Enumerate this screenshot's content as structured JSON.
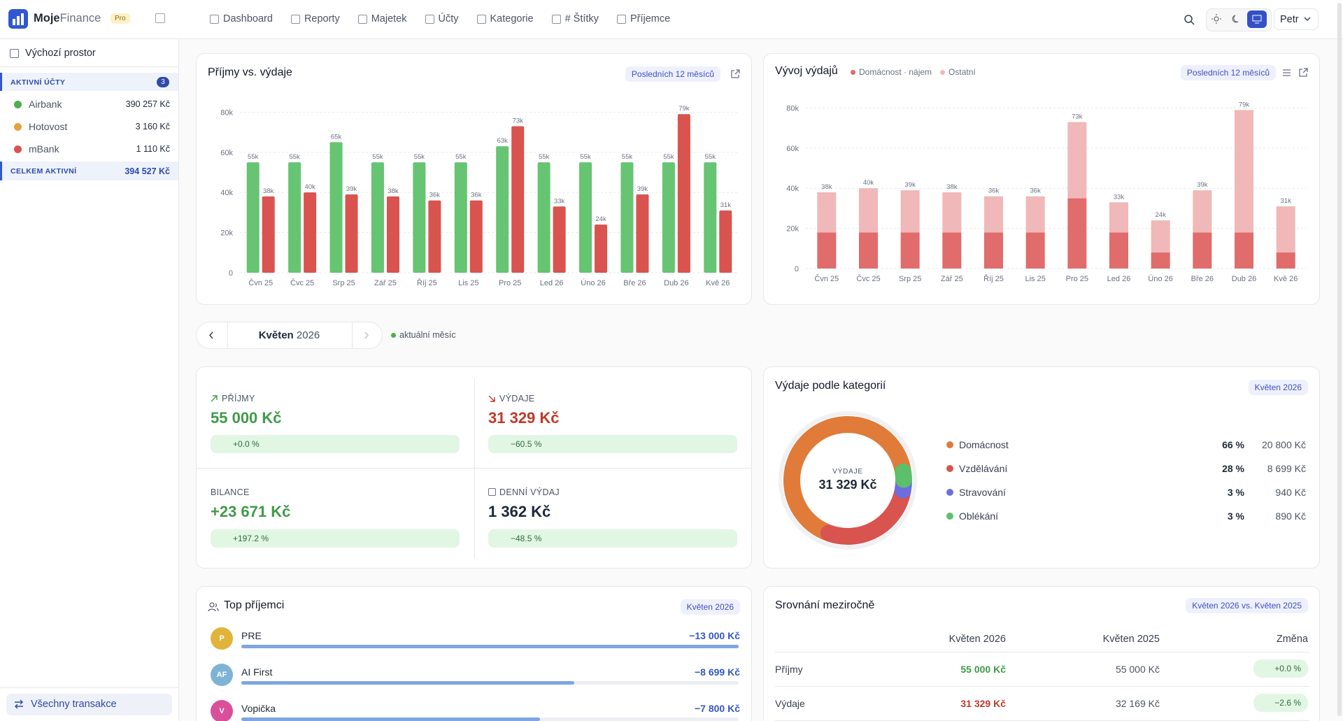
{
  "sidebar": {
    "brand_main": "Moje",
    "brand_accent": "Finance",
    "badge": "Pro",
    "workspace": "Výchozí prostor",
    "accounts_title": "AKTIVNÍ ÚČTY",
    "accounts_count": "3",
    "accounts": [
      {
        "name": "Airbank",
        "balance": "390 257 Kč",
        "color": "#4caf50"
      },
      {
        "name": "Hotovost",
        "balance": "3 160 Kč",
        "color": "#e5a23a"
      },
      {
        "name": "mBank",
        "balance": "1 110 Kč",
        "color": "#d9534f"
      }
    ],
    "total_label": "CELKEM AKTIVNÍ",
    "total": "394 527 Kč",
    "all_transactions": "Všechny transakce"
  },
  "nav": {
    "items": [
      "Dashboard",
      "Reporty",
      "Majetek",
      "Účty",
      "Kategorie",
      "# Štítky",
      "Příjemce"
    ],
    "user": "Petr"
  },
  "chart_data": [
    {
      "type": "bar",
      "title": "Příjmy vs. výdaje",
      "badge": "Posledních 12 měsíců",
      "categories": [
        "Čvn 25",
        "Čvc 25",
        "Srp 25",
        "Zář 25",
        "Říj 25",
        "Lis 25",
        "Pro 25",
        "Led 26",
        "Úno 26",
        "Bře 26",
        "Dub 26",
        "Kvě 26"
      ],
      "series": [
        {
          "color": "#66c472",
          "values": [
            55000,
            55000,
            65000,
            55000,
            55000,
            55000,
            63000,
            55000,
            55000,
            55000,
            55000,
            55000
          ],
          "value_labels": [
            "55k",
            "55k",
            "65k",
            "55k",
            "55k",
            "55k",
            "63k",
            "55k",
            "55k",
            "55k",
            "55k",
            "55k"
          ]
        },
        {
          "color": "#d9534f",
          "values": [
            38000,
            40000,
            39000,
            38000,
            36000,
            36000,
            73000,
            33000,
            24000,
            39000,
            79000,
            31000
          ],
          "value_labels": [
            "38k",
            "40k",
            "39k",
            "38k",
            "36k",
            "36k",
            "73k",
            "33k",
            "24k",
            "39k",
            "79k",
            "31k"
          ]
        }
      ],
      "ylim": [
        0,
        85000
      ],
      "yticks": [
        {
          "value": 0,
          "label": "0"
        },
        {
          "value": 20000,
          "label": "20k"
        },
        {
          "value": 40000,
          "label": "40k"
        },
        {
          "value": 60000,
          "label": "60k"
        },
        {
          "value": 80000,
          "label": "80k"
        }
      ],
      "grid": true
    },
    {
      "type": "stacked_bar",
      "title": "Vývoj výdajů",
      "badge": "Posledních 12 měsíců",
      "categories": [
        "Čvn 25",
        "Čvc 25",
        "Srp 25",
        "Zář 25",
        "Říj 25",
        "Lis 25",
        "Pro 25",
        "Led 26",
        "Úno 26",
        "Bře 26",
        "Dub 26",
        "Kvě 26"
      ],
      "series": [
        {
          "name": "Domácnost · nájem",
          "color": "#e06c6c",
          "values": [
            18000,
            18000,
            18000,
            18000,
            18000,
            18000,
            35000,
            18000,
            8000,
            18000,
            18000,
            8000
          ]
        },
        {
          "name": "Ostatní",
          "color": "#f0b8b8",
          "values": [
            20000,
            22000,
            21000,
            20000,
            18000,
            18000,
            38000,
            15000,
            16000,
            21000,
            61000,
            23000
          ]
        }
      ],
      "totals": [
        38000,
        40000,
        39000,
        38000,
        36000,
        36000,
        73000,
        33000,
        24000,
        39000,
        79000,
        31000
      ],
      "total_labels": [
        "38k",
        "40k",
        "39k",
        "38k",
        "36k",
        "36k",
        "73k",
        "33k",
        "24k",
        "39k",
        "79k",
        "31k"
      ],
      "ylim": [
        0,
        84000
      ],
      "yticks": [
        {
          "value": 0,
          "label": "0"
        },
        {
          "value": 20000,
          "label": "20k"
        },
        {
          "value": 40000,
          "label": "40k"
        },
        {
          "value": 60000,
          "label": "60k"
        },
        {
          "value": 80000,
          "label": "80k"
        }
      ],
      "grid": true
    },
    {
      "type": "donut",
      "title": "Výdaje podle kategorií",
      "badge": "Květen 2026",
      "center_label": "VÝDAJE",
      "center_value": "31 329 Kč",
      "categories": [
        "Domácnost",
        "Vzdělávání",
        "Stravování",
        "Oblékání"
      ],
      "colors": [
        "#e07b39",
        "#d9534f",
        "#6c6ee0",
        "#5cbf6a"
      ],
      "values": [
        20800,
        8699,
        940,
        890
      ],
      "value_labels": [
        "20 800 Kč",
        "8 699 Kč",
        "940 Kč",
        "890 Kč"
      ],
      "shares": [
        "66 %",
        "28 %",
        "3 %",
        "3 %"
      ]
    }
  ],
  "month": {
    "name": "Květen",
    "year": "2026",
    "status": "aktuální měsíc"
  },
  "kpis": [
    {
      "label": "PŘÍJMY",
      "value": "55 000 Kč",
      "change": "+0.0 %"
    },
    {
      "label": "VÝDAJE",
      "value": "31 329 Kč",
      "change": "−60.5 %"
    },
    {
      "label": "BILANCE",
      "value": "+23 671 Kč",
      "change": "+197.2 %"
    },
    {
      "label": "DENNÍ VÝDAJ",
      "value": "1 362 Kč",
      "change": "−48.5 %"
    }
  ],
  "recipients": {
    "title": "Top příjemci",
    "badge": "Květen 2026",
    "items": [
      {
        "initials": "P",
        "name": "PRE",
        "color": "#e0b43a"
      },
      {
        "initials": "AF",
        "name": "AI First",
        "color": "#7fb3d5"
      },
      {
        "initials": "V",
        "name": "Vopička",
        "color": "#d94f9a"
      }
    ],
    "values": [
      -13000,
      -8699,
      -7800
    ],
    "value_labels": [
      "−13 000 Kč",
      "−8 699 Kč",
      "−7 800 Kč"
    ]
  },
  "comparison": {
    "title": "Srovnání meziročně",
    "badge": "Květen 2026 vs. Květen 2025",
    "headers": [
      "Květen 2026",
      "Květen 2025",
      "Změna"
    ],
    "rows": [
      [
        "Příjmy",
        "55 000 Kč",
        "55 000 Kč",
        "+0.0 %"
      ],
      [
        "Výdaje",
        "31 329 Kč",
        "32 169 Kč",
        "−2.6 %"
      ]
    ]
  }
}
